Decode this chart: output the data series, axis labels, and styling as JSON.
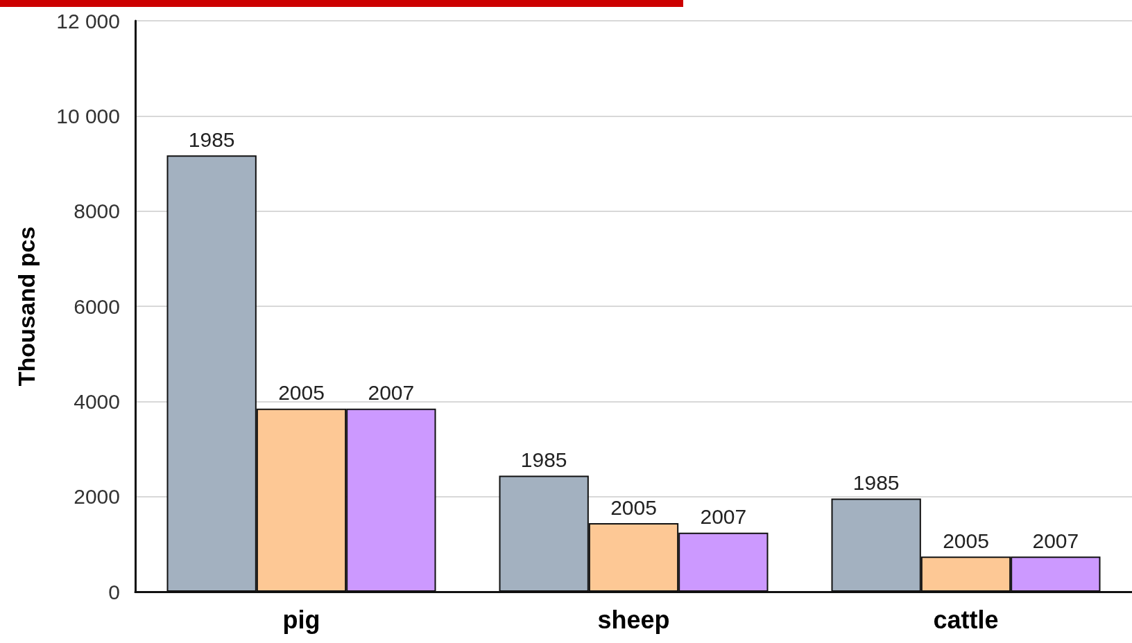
{
  "chart_data": {
    "type": "bar",
    "ylabel": "Thousand pcs",
    "categories": [
      "pig",
      "sheep",
      "cattle"
    ],
    "series": [
      {
        "name": "1985",
        "color": "#a3b1c0",
        "values": [
          9170,
          2440,
          1960
        ]
      },
      {
        "name": "2005",
        "color": "#fdc895",
        "values": [
          3850,
          1440,
          740
        ]
      },
      {
        "name": "2007",
        "color": "#cc99ff",
        "values": [
          3850,
          1240,
          740
        ]
      }
    ],
    "ylim": [
      0,
      12000
    ],
    "yticks": [
      0,
      2000,
      4000,
      6000,
      8000,
      {
        "value": 10000,
        "label": "10 000"
      },
      {
        "value": 12000,
        "label": "12 000"
      }
    ],
    "grid": "y",
    "legend": false
  }
}
